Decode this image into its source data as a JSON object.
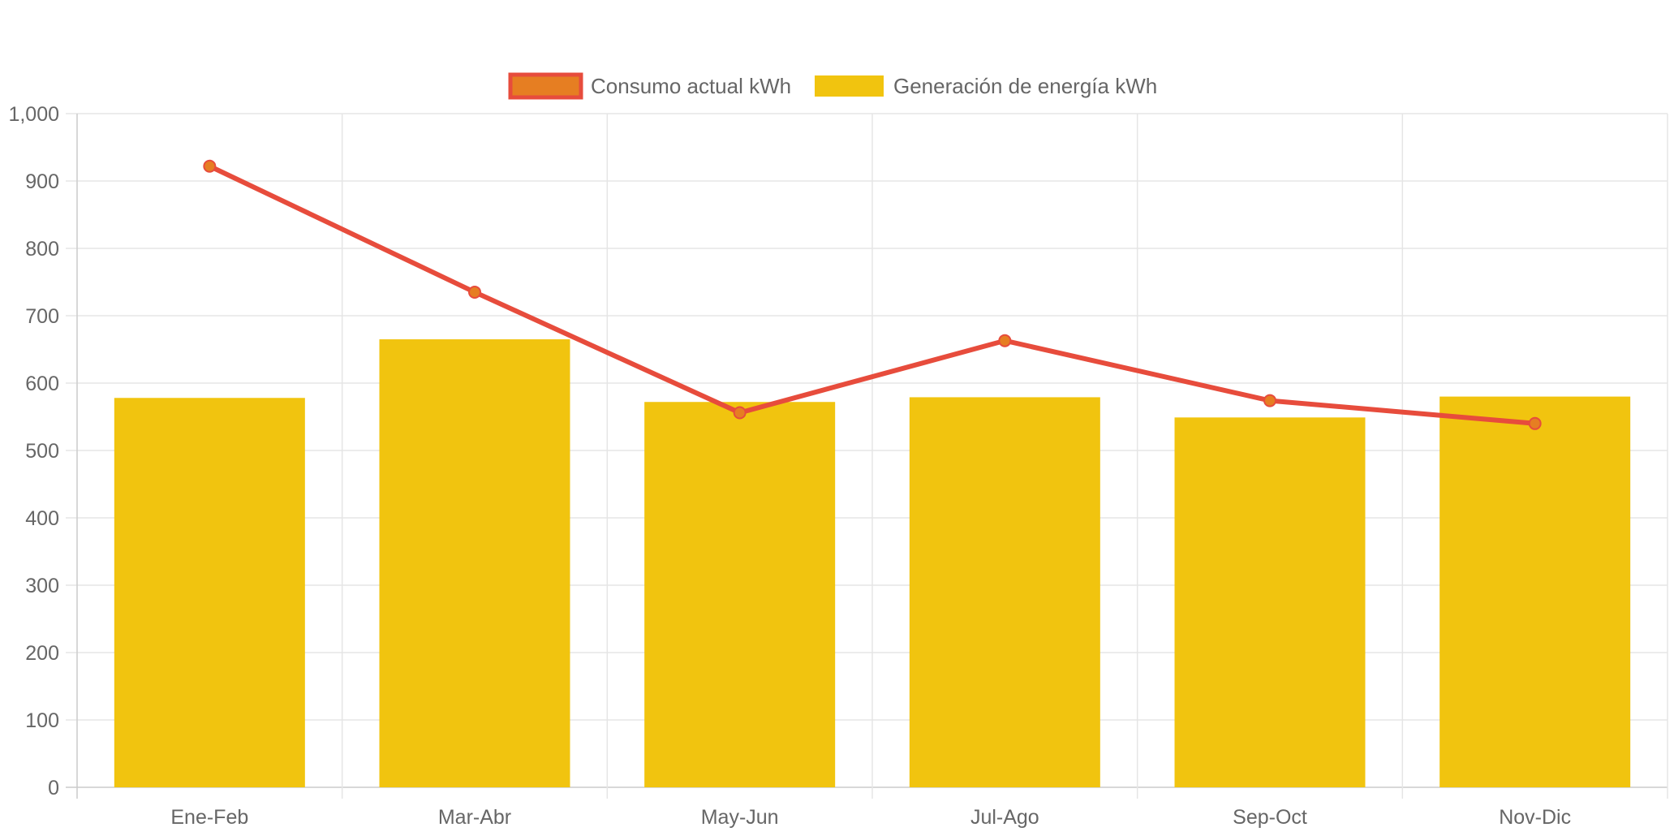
{
  "chart_data": {
    "type": "bar",
    "title": "",
    "xlabel": "",
    "ylabel": "",
    "categories": [
      "Ene-Feb",
      "Mar-Abr",
      "May-Jun",
      "Jul-Ago",
      "Sep-Oct",
      "Nov-Dic"
    ],
    "ylim": [
      0,
      1000
    ],
    "y_ticks": [
      0,
      100,
      200,
      300,
      400,
      500,
      600,
      700,
      800,
      900,
      1000
    ],
    "y_tick_labels": [
      "0",
      "100",
      "200",
      "300",
      "400",
      "500",
      "600",
      "700",
      "800",
      "900",
      "1,000"
    ],
    "grid": true,
    "legend_position": "top-center",
    "series": [
      {
        "name": "Consumo actual kWh",
        "type": "line",
        "values": [
          922,
          735,
          556,
          663,
          574,
          540
        ],
        "line_color": "#e74c3c",
        "point_color": "#e67e22"
      },
      {
        "name": "Generación de energía kWh",
        "type": "bar",
        "values": [
          578,
          665,
          572,
          579,
          549,
          580
        ],
        "color": "#f1c40f"
      }
    ]
  }
}
